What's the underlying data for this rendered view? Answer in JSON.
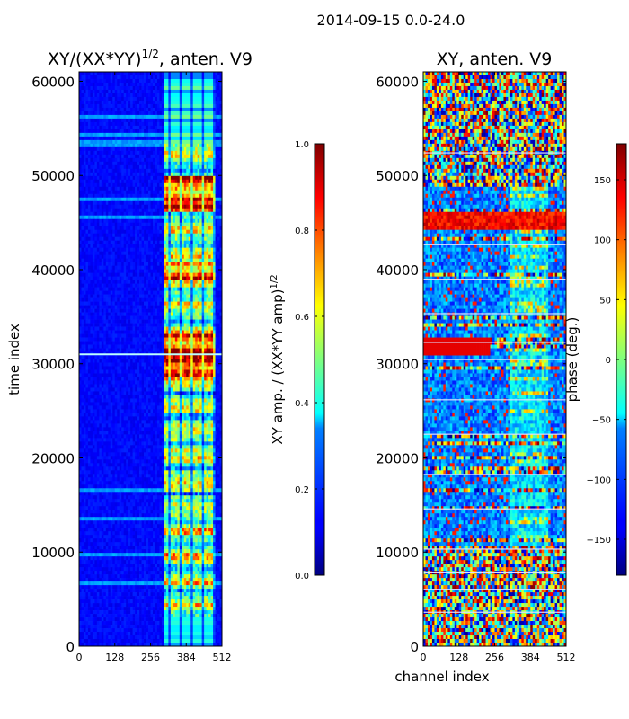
{
  "figure_title": "2014-09-15 0.0-24.0",
  "colors": {
    "background": "#ffffff",
    "axis": "#000000"
  },
  "chart_data": [
    {
      "type": "heatmap",
      "title_main": "XY/(XX*YY)",
      "title_sup": "1/2",
      "title_tail": ", anten. V9",
      "xlabel": "",
      "ylabel": "time index",
      "xlim": [
        0,
        512
      ],
      "ylim": [
        0,
        61000
      ],
      "xticks": [
        0,
        128,
        256,
        384,
        512
      ],
      "xtick_labels": [
        "0",
        "128",
        "256",
        "384",
        "512"
      ],
      "yticks": [
        0,
        10000,
        20000,
        30000,
        40000,
        50000,
        60000
      ],
      "ytick_labels": [
        "0",
        "10000",
        "20000",
        "30000",
        "40000",
        "50000",
        "60000"
      ],
      "value_range": [
        0.0,
        1.0
      ],
      "colormap": "jet",
      "colorbar": {
        "label_main": "XY amp. / (XX*YY amp)",
        "label_sup": "1/2",
        "vlim": [
          0.0,
          1.0
        ],
        "ticks": [
          0.0,
          0.2,
          0.4,
          0.6,
          0.8,
          1.0
        ],
        "tick_labels": [
          "0.0",
          "0.2",
          "0.4",
          "0.6",
          "0.8",
          "1.0"
        ]
      }
    },
    {
      "type": "heatmap",
      "title_main": "XY, anten. V9",
      "xlabel": "channel index",
      "ylabel": "",
      "xlim": [
        0,
        512
      ],
      "ylim": [
        0,
        61000
      ],
      "xticks": [
        0,
        128,
        256,
        384,
        512
      ],
      "xtick_labels": [
        "0",
        "128",
        "256",
        "384",
        "512"
      ],
      "yticks": [
        0,
        10000,
        20000,
        30000,
        40000,
        50000,
        60000
      ],
      "ytick_labels": [
        "0",
        "10000",
        "20000",
        "30000",
        "40000",
        "50000",
        "60000"
      ],
      "value_range": [
        -180,
        180
      ],
      "colormap": "jet",
      "colorbar": {
        "label_main": "phase (deg.)",
        "vlim": [
          -180,
          180
        ],
        "ticks": [
          -150,
          -100,
          -50,
          0,
          50,
          100,
          150
        ],
        "tick_labels": [
          "−150",
          "−100",
          "−50",
          "0",
          "50",
          "100",
          "150"
        ]
      }
    }
  ]
}
